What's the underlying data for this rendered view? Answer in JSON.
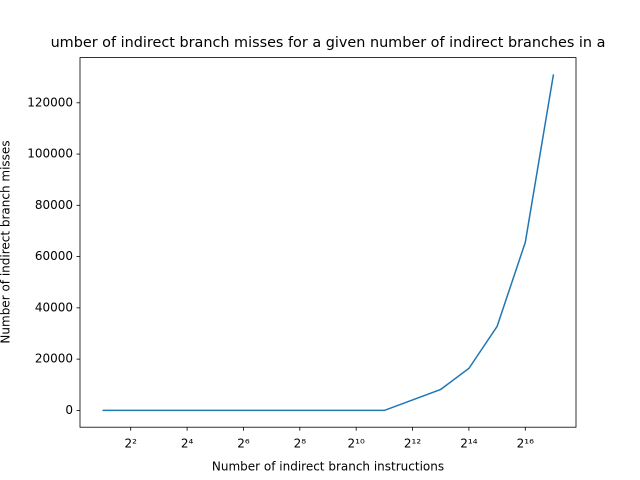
{
  "chart_data": {
    "type": "line",
    "title": "umber of indirect branch misses for a given number of indirect branches in a",
    "xlabel": "Number of indirect branch instructions",
    "ylabel": "Number of indirect branch misses",
    "xscale": "log2",
    "x": [
      2,
      4,
      8,
      16,
      32,
      64,
      128,
      256,
      512,
      1024,
      2048,
      4096,
      8192,
      16384,
      32768,
      65536,
      131072
    ],
    "series": [
      {
        "color": "#1f77b4",
        "values": [
          0,
          0,
          0,
          0,
          0,
          0,
          0,
          0,
          0,
          0,
          0,
          4096,
          8192,
          16384,
          32768,
          65536,
          131072
        ]
      }
    ],
    "xlim": [
      1.149,
      228170
    ],
    "xticks": [
      {
        "value": 4,
        "label": "2²"
      },
      {
        "value": 16,
        "label": "2⁴"
      },
      {
        "value": 64,
        "label": "2⁶"
      },
      {
        "value": 256,
        "label": "2⁸"
      },
      {
        "value": 1024,
        "label": "2¹⁰"
      },
      {
        "value": 4096,
        "label": "2¹²"
      },
      {
        "value": 16384,
        "label": "2¹⁴"
      },
      {
        "value": 65536,
        "label": "2¹⁶"
      }
    ],
    "ylim": [
      -6554,
      137626
    ],
    "yticks": [
      0,
      20000,
      40000,
      60000,
      80000,
      100000,
      120000
    ]
  }
}
